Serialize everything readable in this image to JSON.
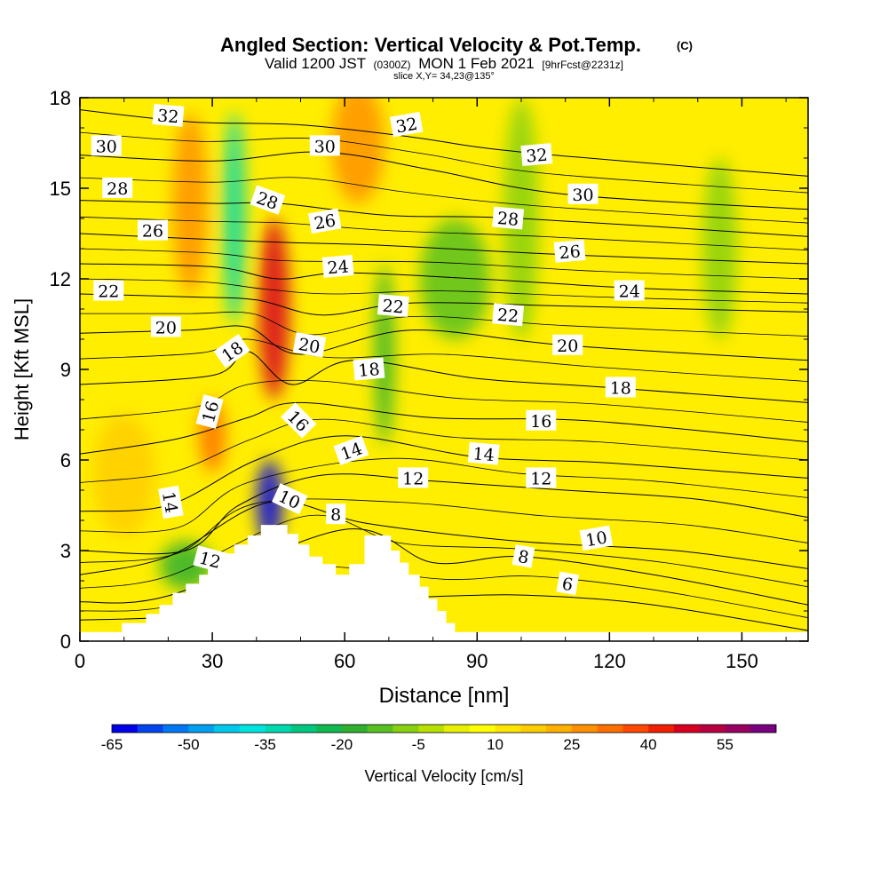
{
  "title": {
    "main": "Angled Section: Vertical Velocity & Pot.Temp.",
    "main_unit": "(C)",
    "valid_a": "Valid 1200 JST",
    "valid_utc": "(0300Z)",
    "valid_b": "MON 1 Feb 2021",
    "fcst": "[9hrFcst@2231z]",
    "slice": "slice X,Y= 34,23@135°"
  },
  "chart_data": {
    "type": "heatmap",
    "xlabel": "Distance [nm]",
    "ylabel": "Height [Kft MSL]",
    "xlim": [
      0,
      165
    ],
    "ylim": [
      0,
      18
    ],
    "x_ticks": [
      "0",
      "30",
      "60",
      "90",
      "120",
      "150"
    ],
    "y_ticks": [
      "0",
      "3",
      "6",
      "9",
      "12",
      "15",
      "18"
    ],
    "colorbar": {
      "label": "Vertical Velocity [cm/s]",
      "tick_labels": [
        "-65",
        "-50",
        "-35",
        "-20",
        "-5",
        "10",
        "25",
        "40",
        "55"
      ],
      "levels": [
        -65,
        -60,
        -55,
        -50,
        -45,
        -40,
        -35,
        -30,
        -25,
        -20,
        -15,
        -10,
        -5,
        0,
        5,
        10,
        15,
        20,
        25,
        30,
        35,
        40,
        45,
        50,
        55,
        60
      ],
      "colors": [
        "#0000e8",
        "#0044ee",
        "#0077f2",
        "#00a0f0",
        "#00c8ec",
        "#00e4e0",
        "#00d8b0",
        "#00c880",
        "#10b850",
        "#30b030",
        "#58c020",
        "#88d010",
        "#b8e000",
        "#e8f000",
        "#ffff00",
        "#ffe400",
        "#ffcc00",
        "#ffb000",
        "#ff9000",
        "#ff7000",
        "#ff4800",
        "#f02000",
        "#d80020",
        "#b80040",
        "#980060",
        "#780080"
      ]
    },
    "terrain_profile": [
      [
        0,
        0.3
      ],
      [
        9.5,
        0.3
      ],
      [
        9.5,
        0.6
      ],
      [
        15,
        0.6
      ],
      [
        15,
        0.9
      ],
      [
        18,
        0.9
      ],
      [
        18,
        1.2
      ],
      [
        21,
        1.2
      ],
      [
        21,
        1.6
      ],
      [
        24,
        1.6
      ],
      [
        24,
        1.9
      ],
      [
        27,
        1.9
      ],
      [
        27,
        2.2
      ],
      [
        29,
        2.2
      ],
      [
        29,
        2.5
      ],
      [
        32,
        2.5
      ],
      [
        32,
        2.9
      ],
      [
        35,
        2.9
      ],
      [
        35,
        3.2
      ],
      [
        38,
        3.2
      ],
      [
        38,
        3.5
      ],
      [
        41,
        3.5
      ],
      [
        41,
        3.85
      ],
      [
        47,
        3.85
      ],
      [
        47,
        3.55
      ],
      [
        49.5,
        3.55
      ],
      [
        49.5,
        3.2
      ],
      [
        52,
        3.2
      ],
      [
        52,
        2.8
      ],
      [
        55,
        2.8
      ],
      [
        55,
        2.55
      ],
      [
        58,
        2.55
      ],
      [
        58,
        2.2
      ],
      [
        61,
        2.2
      ],
      [
        61,
        2.55
      ],
      [
        64.5,
        2.55
      ],
      [
        64.5,
        3.5
      ],
      [
        70.5,
        3.5
      ],
      [
        70.5,
        3.0
      ],
      [
        72.5,
        3.0
      ],
      [
        72.5,
        2.6
      ],
      [
        74.5,
        2.6
      ],
      [
        74.5,
        2.2
      ],
      [
        77,
        2.2
      ],
      [
        77,
        1.8
      ],
      [
        79,
        1.8
      ],
      [
        79,
        1.4
      ],
      [
        81,
        1.4
      ],
      [
        81,
        1.0
      ],
      [
        83,
        1.0
      ],
      [
        83,
        0.6
      ],
      [
        85,
        0.6
      ],
      [
        85,
        0.3
      ],
      [
        165,
        0.3
      ]
    ],
    "vertical_velocity_features": [
      {
        "x": 44,
        "y": 11,
        "w": 3.5,
        "h": 3.0,
        "value": 45
      },
      {
        "x": 43,
        "y": 4.6,
        "w": 3.0,
        "h": 1.4,
        "value": -62
      },
      {
        "x": 35,
        "y": 14,
        "w": 2.5,
        "h": 3.5,
        "value": -35
      },
      {
        "x": 69,
        "y": 9.5,
        "w": 2.2,
        "h": 3.0,
        "value": -20
      },
      {
        "x": 30,
        "y": 6.8,
        "w": 3.0,
        "h": 1.2,
        "value": 30
      },
      {
        "x": 25,
        "y": 14.5,
        "w": 4.0,
        "h": 3.0,
        "value": 25
      },
      {
        "x": 63,
        "y": 16.5,
        "w": 6.0,
        "h": 2.0,
        "value": 25
      },
      {
        "x": 85,
        "y": 12,
        "w": 8.0,
        "h": 2.0,
        "value": -15
      },
      {
        "x": 100,
        "y": 14,
        "w": 4.0,
        "h": 4.0,
        "value": -10
      },
      {
        "x": 145,
        "y": 13,
        "w": 4.0,
        "h": 3.0,
        "value": -10
      },
      {
        "x": 24,
        "y": 2.5,
        "w": 6.0,
        "h": 0.8,
        "value": -20
      },
      {
        "x": 10,
        "y": 5.5,
        "w": 7.0,
        "h": 2.0,
        "value": 15
      }
    ],
    "isentropes": [
      {
        "level": 6,
        "points": [
          [
            0,
            0.7
          ],
          [
            20,
            0.8
          ],
          [
            40,
            1.2
          ],
          [
            85,
            1.5
          ],
          [
            105,
            1.5
          ],
          [
            130,
            1.2
          ],
          [
            165,
            0.35
          ]
        ]
      },
      {
        "level": 8,
        "points": [
          [
            0,
            1.3
          ],
          [
            20,
            1.5
          ],
          [
            60,
            3.7
          ],
          [
            80,
            2.6
          ],
          [
            100,
            2.8
          ],
          [
            130,
            2.2
          ],
          [
            165,
            1.2
          ]
        ]
      },
      {
        "level": 10,
        "points": [
          [
            0,
            2.2
          ],
          [
            20,
            2.8
          ],
          [
            43,
            4.6
          ],
          [
            65,
            3.9
          ],
          [
            100,
            3.3
          ],
          [
            135,
            3.0
          ],
          [
            165,
            2.4
          ]
        ]
      },
      {
        "level": 12,
        "points": [
          [
            0,
            3.0
          ],
          [
            24,
            3.0
          ],
          [
            36,
            4.5
          ],
          [
            55,
            5.5
          ],
          [
            80,
            5.3
          ],
          [
            110,
            5.0
          ],
          [
            140,
            4.7
          ],
          [
            165,
            4.1
          ]
        ]
      },
      {
        "level": 14,
        "points": [
          [
            0,
            4.3
          ],
          [
            20,
            4.5
          ],
          [
            40,
            6.0
          ],
          [
            60,
            6.8
          ],
          [
            90,
            6.1
          ],
          [
            120,
            5.9
          ],
          [
            165,
            5.4
          ]
        ]
      },
      {
        "level": 16,
        "points": [
          [
            0,
            6.2
          ],
          [
            22,
            6.7
          ],
          [
            38,
            7.4
          ],
          [
            50,
            7.9
          ],
          [
            80,
            7.4
          ],
          [
            115,
            7.3
          ],
          [
            165,
            6.6
          ]
        ]
      },
      {
        "level": 18,
        "points": [
          [
            0,
            8.5
          ],
          [
            30,
            8.8
          ],
          [
            38,
            9.6
          ],
          [
            48,
            8.5
          ],
          [
            62,
            9.3
          ],
          [
            90,
            8.7
          ],
          [
            120,
            8.4
          ],
          [
            165,
            7.9
          ]
        ]
      },
      {
        "level": 20,
        "points": [
          [
            0,
            10.2
          ],
          [
            25,
            10.3
          ],
          [
            38,
            10.4
          ],
          [
            50,
            9.5
          ],
          [
            75,
            10.3
          ],
          [
            110,
            9.8
          ],
          [
            165,
            9.3
          ]
        ]
      },
      {
        "level": 22,
        "points": [
          [
            0,
            11.5
          ],
          [
            25,
            11.4
          ],
          [
            40,
            11.3
          ],
          [
            55,
            10.8
          ],
          [
            75,
            11.2
          ],
          [
            110,
            11.1
          ],
          [
            165,
            10.9
          ]
        ]
      },
      {
        "level": 24,
        "points": [
          [
            0,
            12.5
          ],
          [
            30,
            12.4
          ],
          [
            45,
            12.0
          ],
          [
            60,
            12.2
          ],
          [
            90,
            12.0
          ],
          [
            125,
            11.7
          ],
          [
            165,
            11.5
          ]
        ]
      },
      {
        "level": 26,
        "points": [
          [
            0,
            13.5
          ],
          [
            30,
            13.3
          ],
          [
            48,
            13.2
          ],
          [
            70,
            13.1
          ],
          [
            110,
            12.8
          ],
          [
            165,
            12.5
          ]
        ]
      },
      {
        "level": 28,
        "points": [
          [
            0,
            14.6
          ],
          [
            30,
            14.5
          ],
          [
            45,
            14.5
          ],
          [
            70,
            14.1
          ],
          [
            100,
            14.0
          ],
          [
            165,
            13.4
          ]
        ]
      },
      {
        "level": 30,
        "points": [
          [
            0,
            16.1
          ],
          [
            30,
            15.9
          ],
          [
            55,
            16.2
          ],
          [
            80,
            15.6
          ],
          [
            110,
            14.8
          ],
          [
            165,
            14.3
          ]
        ]
      },
      {
        "level": 32,
        "points": [
          [
            0,
            17.6
          ],
          [
            25,
            17.2
          ],
          [
            50,
            17.1
          ],
          [
            75,
            16.7
          ],
          [
            100,
            16.2
          ],
          [
            165,
            15.4
          ]
        ]
      }
    ],
    "contour_labels": [
      {
        "text": "32",
        "x": 20,
        "y": 17.4,
        "angle": -5
      },
      {
        "text": "30",
        "x": 6,
        "y": 16.4,
        "angle": 0
      },
      {
        "text": "28",
        "x": 8.5,
        "y": 15.0,
        "angle": 0
      },
      {
        "text": "26",
        "x": 16.5,
        "y": 13.6,
        "angle": 0
      },
      {
        "text": "22",
        "x": 6.5,
        "y": 11.6,
        "angle": 0
      },
      {
        "text": "20",
        "x": 19.5,
        "y": 10.4,
        "angle": 0
      },
      {
        "text": "18",
        "x": 34.5,
        "y": 9.6,
        "angle": 35
      },
      {
        "text": "16",
        "x": 29.5,
        "y": 7.6,
        "angle": 75
      },
      {
        "text": "14",
        "x": 20.5,
        "y": 4.6,
        "angle": -80
      },
      {
        "text": "12",
        "x": 29.5,
        "y": 2.7,
        "angle": -15
      },
      {
        "text": "28",
        "x": 42.5,
        "y": 14.6,
        "angle": -20
      },
      {
        "text": "30",
        "x": 55.5,
        "y": 16.4,
        "angle": 0
      },
      {
        "text": "26",
        "x": 55.5,
        "y": 13.9,
        "angle": 10
      },
      {
        "text": "24",
        "x": 58.5,
        "y": 12.4,
        "angle": 5
      },
      {
        "text": "20",
        "x": 52,
        "y": 9.8,
        "angle": -10
      },
      {
        "text": "18",
        "x": 65.5,
        "y": 9.0,
        "angle": 5
      },
      {
        "text": "16",
        "x": 49.5,
        "y": 7.3,
        "angle": -45
      },
      {
        "text": "14",
        "x": 61.5,
        "y": 6.3,
        "angle": 20
      },
      {
        "text": "12",
        "x": 75.5,
        "y": 5.4,
        "angle": 0
      },
      {
        "text": "10",
        "x": 47.5,
        "y": 4.7,
        "angle": -25
      },
      {
        "text": "8",
        "x": 58,
        "y": 4.2,
        "angle": 0
      },
      {
        "text": "32",
        "x": 74,
        "y": 17.1,
        "angle": 10
      },
      {
        "text": "32",
        "x": 103.5,
        "y": 16.1,
        "angle": 5
      },
      {
        "text": "30",
        "x": 114,
        "y": 14.8,
        "angle": 0
      },
      {
        "text": "28",
        "x": 97,
        "y": 14.0,
        "angle": -5
      },
      {
        "text": "26",
        "x": 111,
        "y": 12.9,
        "angle": 5
      },
      {
        "text": "24",
        "x": 124.5,
        "y": 11.6,
        "angle": 0
      },
      {
        "text": "22",
        "x": 71,
        "y": 11.1,
        "angle": -5
      },
      {
        "text": "22",
        "x": 97,
        "y": 10.8,
        "angle": -5
      },
      {
        "text": "20",
        "x": 110.5,
        "y": 9.8,
        "angle": 0
      },
      {
        "text": "18",
        "x": 122.5,
        "y": 8.4,
        "angle": 0
      },
      {
        "text": "16",
        "x": 104.5,
        "y": 7.3,
        "angle": 0
      },
      {
        "text": "14",
        "x": 91.5,
        "y": 6.2,
        "angle": -5
      },
      {
        "text": "12",
        "x": 104.5,
        "y": 5.4,
        "angle": 0
      },
      {
        "text": "10",
        "x": 117,
        "y": 3.4,
        "angle": 10
      },
      {
        "text": "8",
        "x": 100.5,
        "y": 2.8,
        "angle": -10
      },
      {
        "text": "6",
        "x": 110.5,
        "y": 1.9,
        "angle": -10
      }
    ]
  },
  "colors": {
    "background_field": "#ffee00",
    "terrain": "#ffffff",
    "contour": "#000000"
  }
}
